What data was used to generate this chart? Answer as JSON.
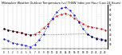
{
  "title": "Milwaukee Weather Outdoor Temperature (vs) THSW Index per Hour (Last 24 Hours)",
  "hours": [
    0,
    1,
    2,
    3,
    4,
    5,
    6,
    7,
    8,
    9,
    10,
    11,
    12,
    13,
    14,
    15,
    16,
    17,
    18,
    19,
    20,
    21,
    22,
    23
  ],
  "temp": [
    45,
    44,
    43,
    42,
    41,
    40,
    39,
    40,
    42,
    46,
    50,
    55,
    58,
    60,
    61,
    59,
    56,
    53,
    50,
    48,
    47,
    46,
    45,
    44
  ],
  "thsw": [
    35,
    33,
    31,
    30,
    29,
    28,
    27,
    29,
    34,
    40,
    48,
    56,
    62,
    66,
    67,
    64,
    59,
    52,
    45,
    40,
    37,
    35,
    34,
    33
  ],
  "black_x": [
    0,
    1,
    2,
    3,
    4,
    5,
    6,
    19,
    20,
    21,
    22,
    23
  ],
  "black_y": [
    45,
    44,
    43,
    42,
    41,
    40,
    39,
    40,
    37,
    36,
    35,
    34
  ],
  "temp_color": "#cc0000",
  "thsw_color": "#0000cc",
  "black_color": "#000000",
  "ylim_min": 25,
  "ylim_max": 70,
  "yticks": [
    30,
    35,
    40,
    45,
    50,
    55,
    60,
    65,
    70
  ],
  "bg_color": "#ffffff",
  "grid_color": "#bbbbbb"
}
